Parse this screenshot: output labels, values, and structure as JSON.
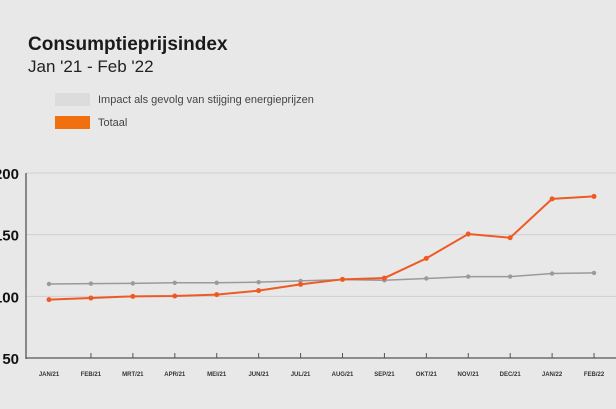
{
  "chart_data": {
    "type": "line",
    "title": "Consumptieprijsindex",
    "subtitle": "Jan '21 - Feb '22",
    "xlabel": "",
    "ylabel": "",
    "ylim": [
      50,
      200
    ],
    "yticks": [
      50,
      100,
      150,
      200
    ],
    "grid": true,
    "legend_position": "top-left",
    "categories": [
      "JAN/21",
      "FEB/21",
      "MRT/21",
      "APR/21",
      "MEI/21",
      "JUN/21",
      "JUL/21",
      "AUG/21",
      "SEP/21",
      "OKT/21",
      "NOV/21",
      "DEC/21",
      "JAN/22",
      "FEB/22"
    ],
    "series": [
      {
        "name": "Impact als gevolg van stijging energieprijzen",
        "color": "#9a9a9a",
        "legend_color": "#dcdcdc",
        "values": [
          110,
          110.3,
          110.5,
          111,
          111,
          111.5,
          112.5,
          113.5,
          113,
          114.5,
          116,
          116,
          118.5,
          119
        ]
      },
      {
        "name": "Totaal",
        "color": "#ee5a24",
        "legend_color": "#f07010",
        "values": [
          97.3,
          98.6,
          100,
          100.3,
          101.4,
          104.6,
          109.7,
          113.8,
          114.8,
          130.8,
          150.5,
          147.5,
          179,
          181
        ]
      }
    ]
  }
}
